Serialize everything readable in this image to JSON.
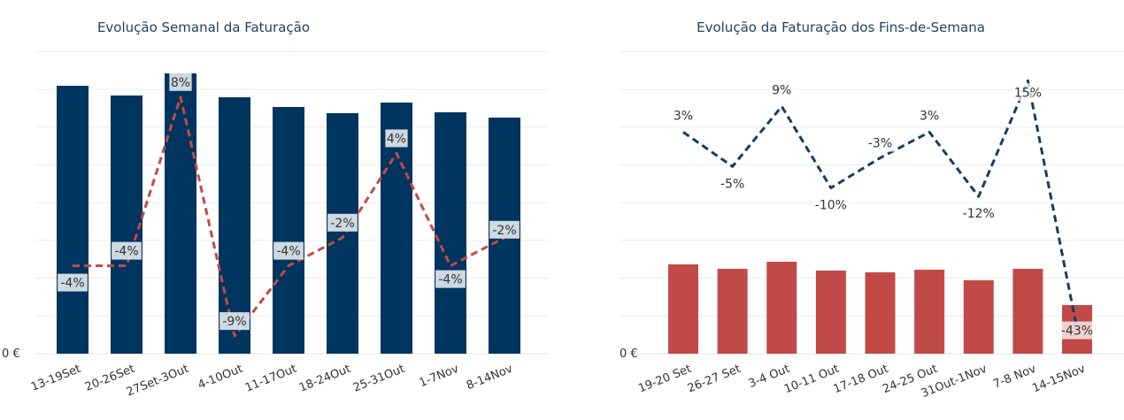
{
  "chart_data": [
    {
      "type": "bar+line",
      "title": "Evolução Semanal da Faturação",
      "categories": [
        "13-19Set",
        "20-26Set",
        "27Set-3Out",
        "4-10Out",
        "11-17Out",
        "18-24Out",
        "25-31Out",
        "1-7Nov",
        "8-14Nov"
      ],
      "y_axis_label_zero": "0 €",
      "grid": true,
      "series": [
        {
          "kind": "bar",
          "color": "#00355f",
          "values": [
            303,
            292,
            317,
            290,
            279,
            272,
            284,
            273,
            267
          ]
        },
        {
          "kind": "line",
          "style": "dashed",
          "color": "#c24a46",
          "values": [
            -4,
            -4,
            8,
            -9,
            -4,
            -2,
            4,
            -4,
            -2
          ],
          "labels": [
            "-4%",
            "-4%",
            "8%",
            "-9%",
            "-4%",
            "-2%",
            "4%",
            "-4%",
            "-2%"
          ]
        }
      ]
    },
    {
      "type": "bar+line",
      "title": "Evolução da Faturação dos Fins-de-Semana",
      "categories": [
        "19-20 Set",
        "26-27 Set",
        "3-4 Out",
        "10-11 Out",
        "17-18 Out",
        "24-25 Out",
        "31Out-1Nov",
        "7-8 Nov",
        "14-15Nov"
      ],
      "y_axis_label_zero": "0 €",
      "grid": true,
      "series": [
        {
          "kind": "bar",
          "color": "#c24a46",
          "values": [
            101,
            96,
            104,
            94,
            92,
            95,
            83,
            96,
            55
          ]
        },
        {
          "kind": "line",
          "style": "dashed",
          "color": "#1a3c5f",
          "values": [
            3,
            -5,
            9,
            -10,
            -3,
            3,
            -12,
            15,
            -43
          ],
          "labels": [
            "3%",
            "-5%",
            "9%",
            "-10%",
            "-3%",
            "3%",
            "-12%",
            "15%",
            "-43%"
          ]
        }
      ]
    }
  ]
}
